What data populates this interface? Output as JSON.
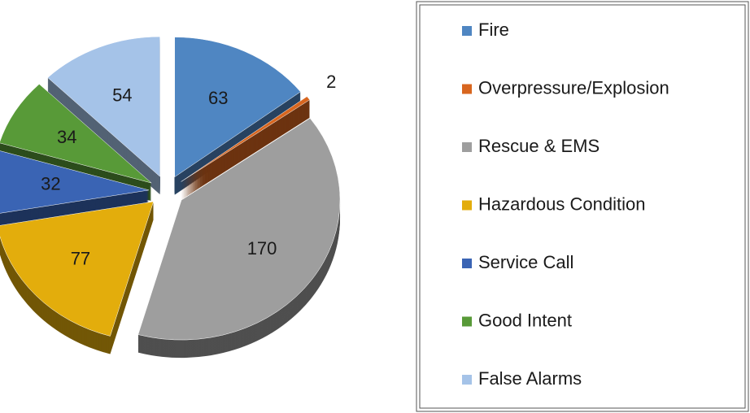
{
  "chart_data": {
    "type": "pie",
    "categories": [
      "Fire",
      "Overpressure/Explosion",
      "Rescue & EMS",
      "Hazardous Condition",
      "Service Call",
      "Good Intent",
      "False Alarms"
    ],
    "values": [
      63,
      2,
      170,
      77,
      32,
      34,
      54
    ],
    "colors": [
      "#4f86c2",
      "#d8661f",
      "#9e9e9e",
      "#e3ad0c",
      "#3a64b4",
      "#589a38",
      "#a5c3e8"
    ],
    "legend": "right"
  }
}
